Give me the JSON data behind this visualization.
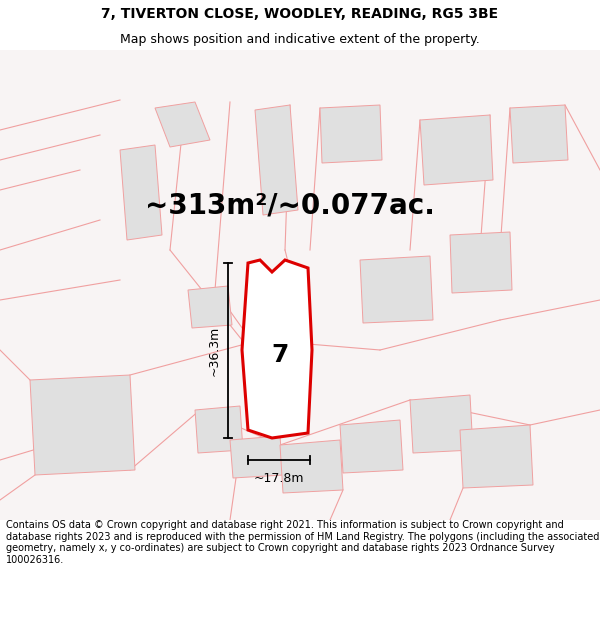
{
  "title_line1": "7, TIVERTON CLOSE, WOODLEY, READING, RG5 3BE",
  "title_line2": "Map shows position and indicative extent of the property.",
  "area_text": "~313m²/~0.077ac.",
  "label_number": "7",
  "dim_width": "~17.8m",
  "dim_height": "~36.3m",
  "footer_text": "Contains OS data © Crown copyright and database right 2021. This information is subject to Crown copyright and database rights 2023 and is reproduced with the permission of HM Land Registry. The polygons (including the associated geometry, namely x, y co-ordinates) are subject to Crown copyright and database rights 2023 Ordnance Survey 100026316.",
  "bg_color": "#ffffff",
  "map_bg": "#f5f5f5",
  "plot_fill": "#ffffff",
  "plot_edge_color": "#dd0000",
  "other_poly_fill": "#e0e0e0",
  "other_poly_edge": "#f0a0a0",
  "road_line_color": "#f0a0a0",
  "title_fontsize": 10,
  "subtitle_fontsize": 9,
  "area_fontsize": 20,
  "number_fontsize": 18,
  "dim_fontsize": 9,
  "footer_fontsize": 7
}
